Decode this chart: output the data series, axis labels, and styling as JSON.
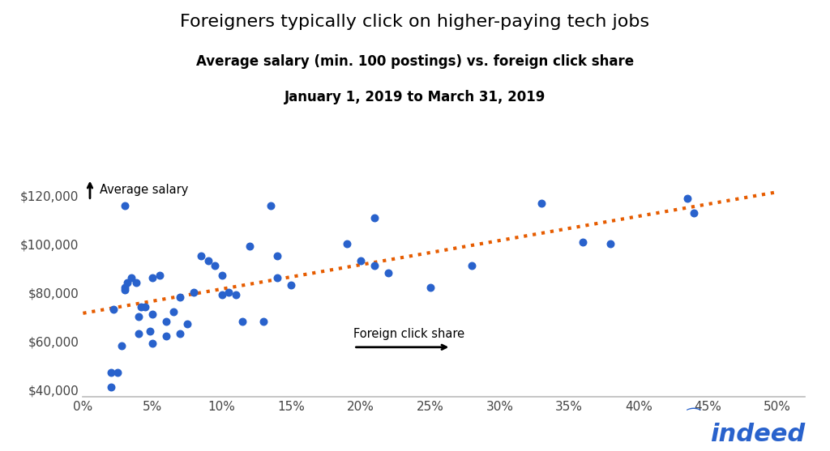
{
  "title_line1": "Foreigners typically click on higher-paying tech jobs",
  "title_line2": "Average salary (min. 100 postings) vs. foreign click share",
  "title_line3": "January 1, 2019 to March 31, 2019",
  "scatter_x": [
    0.022,
    0.025,
    0.028,
    0.03,
    0.03,
    0.032,
    0.035,
    0.038,
    0.04,
    0.04,
    0.042,
    0.045,
    0.048,
    0.05,
    0.05,
    0.05,
    0.055,
    0.06,
    0.06,
    0.065,
    0.07,
    0.07,
    0.075,
    0.08,
    0.085,
    0.09,
    0.095,
    0.1,
    0.1,
    0.105,
    0.11,
    0.115,
    0.12,
    0.13,
    0.135,
    0.14,
    0.14,
    0.15,
    0.19,
    0.2,
    0.21,
    0.21,
    0.22,
    0.25,
    0.28,
    0.33,
    0.36,
    0.38,
    0.435,
    0.44,
    0.02,
    0.02,
    0.03
  ],
  "scatter_y": [
    73000,
    47000,
    58000,
    82000,
    81000,
    84000,
    86000,
    84000,
    70000,
    63000,
    74000,
    74000,
    64000,
    71000,
    86000,
    59000,
    87000,
    62000,
    68000,
    72000,
    63000,
    78000,
    67000,
    80000,
    95000,
    93000,
    91000,
    87000,
    79000,
    80000,
    79000,
    68000,
    99000,
    68000,
    116000,
    95000,
    86000,
    83000,
    100000,
    93000,
    91000,
    111000,
    88000,
    82000,
    91000,
    117000,
    101000,
    100000,
    119000,
    113000,
    47000,
    41000,
    116000
  ],
  "trendline_x": [
    0.0,
    0.5
  ],
  "trendline_y": [
    71500,
    121500
  ],
  "dot_color": "#2962CC",
  "trend_color": "#E65C00",
  "xlim": [
    0.0,
    0.52
  ],
  "ylim": [
    37000,
    130000
  ],
  "xticks": [
    0.0,
    0.05,
    0.1,
    0.15,
    0.2,
    0.25,
    0.3,
    0.35,
    0.4,
    0.45,
    0.5
  ],
  "yticks": [
    40000,
    60000,
    80000,
    100000,
    120000
  ],
  "xlabel_arrow_text": "Foreign click share",
  "ylabel_arrow_text": "Average salary",
  "bg_color": "#FFFFFF",
  "axis_color": "#BBBBBB",
  "indeed_color": "#2962CC"
}
